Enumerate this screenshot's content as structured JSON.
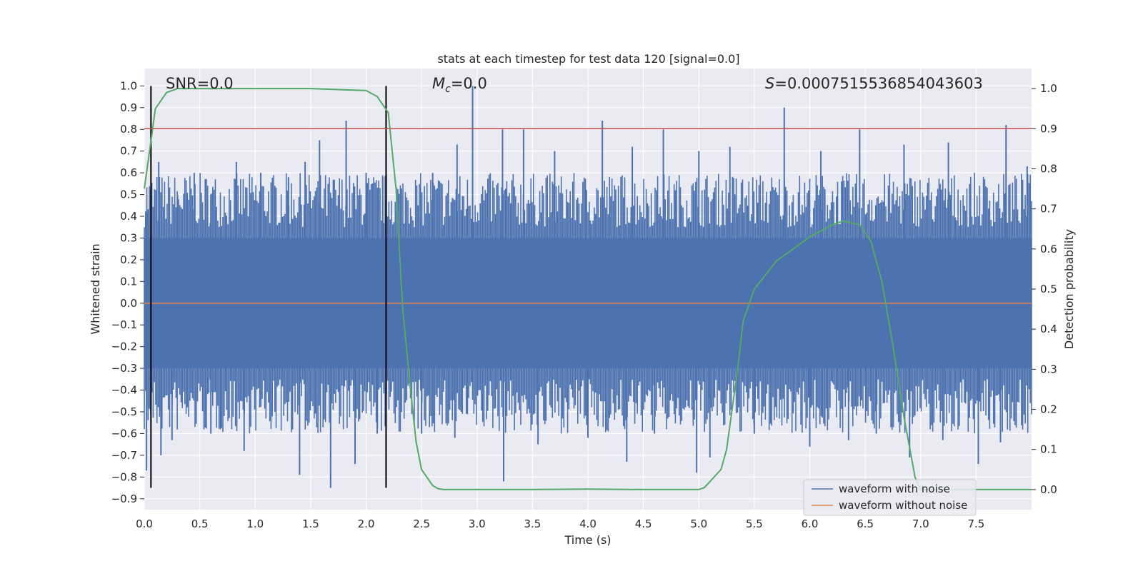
{
  "title": "stats at each timestep for test data 120 [signal=0.0]",
  "colors": {
    "background": "#eaeaf2",
    "grid": "#ffffff",
    "noisy_waveform": "#4c72b0",
    "clean_waveform": "#dd8452",
    "probability": "#55a868",
    "threshold": "#c44e52",
    "markers": "#000000"
  },
  "annotations": {
    "snr": "SNR=0.0",
    "mc_symbol": "M",
    "mc_sub": "c",
    "mc_value": "=0.0",
    "s_symbol": "S",
    "s_value": "=0.0007515536854043603"
  },
  "chart_data": {
    "type": "line",
    "xlabel": "Time (s)",
    "ylabel_left": "Whitened strain",
    "ylabel_right": "Detection probability",
    "xlim": [
      0.0,
      8.0
    ],
    "ylim_left": [
      -0.95,
      1.08
    ],
    "ylim_right": [
      -0.05,
      1.05
    ],
    "x_ticks": [
      "0.0",
      "0.5",
      "1.0",
      "1.5",
      "2.0",
      "2.5",
      "3.0",
      "3.5",
      "4.0",
      "4.5",
      "5.0",
      "5.5",
      "6.0",
      "6.5",
      "7.0",
      "7.5"
    ],
    "y_left_ticks": [
      "1.0",
      "0.9",
      "0.8",
      "0.7",
      "0.6",
      "0.5",
      "0.4",
      "0.3",
      "0.2",
      "0.1",
      "0.0",
      "−0.1",
      "−0.2",
      "−0.3",
      "−0.4",
      "−0.5",
      "−0.6",
      "−0.7",
      "−0.8",
      "−0.9"
    ],
    "y_right_ticks": [
      "1.0",
      "0.9",
      "0.8",
      "0.7",
      "0.6",
      "0.5",
      "0.4",
      "0.3",
      "0.2",
      "0.1",
      "0.0"
    ],
    "legend": {
      "position": "bottom-right",
      "entries": [
        "waveform with noise",
        "waveform without noise"
      ]
    },
    "vertical_markers_x": [
      0.06,
      2.18
    ],
    "vertical_markers_y_range": [
      -0.85,
      1.0
    ],
    "threshold_probability": 0.9,
    "series": [
      {
        "name": "waveform with noise",
        "axis": "left",
        "style": "noise",
        "band": [
          -0.3,
          0.3
        ],
        "spikes_up": [
          [
            0.03,
            0.43
          ],
          [
            0.13,
            0.65
          ],
          [
            0.3,
            0.5
          ],
          [
            0.45,
            0.6
          ],
          [
            0.6,
            0.5
          ],
          [
            0.83,
            0.65
          ],
          [
            1.05,
            0.6
          ],
          [
            1.3,
            0.58
          ],
          [
            1.45,
            0.65
          ],
          [
            1.58,
            0.75
          ],
          [
            1.82,
            0.84
          ],
          [
            2.0,
            0.6
          ],
          [
            2.15,
            0.58
          ],
          [
            2.6,
            0.6
          ],
          [
            2.82,
            0.73
          ],
          [
            2.96,
            1.0
          ],
          [
            3.23,
            0.8
          ],
          [
            3.42,
            0.8
          ],
          [
            3.7,
            0.7
          ],
          [
            4.13,
            0.84
          ],
          [
            4.4,
            0.72
          ],
          [
            4.68,
            0.8
          ],
          [
            5.0,
            0.7
          ],
          [
            5.28,
            0.72
          ],
          [
            5.77,
            0.9
          ],
          [
            6.1,
            0.7
          ],
          [
            6.45,
            0.8
          ],
          [
            6.85,
            0.73
          ],
          [
            7.25,
            0.74
          ],
          [
            7.77,
            0.82
          ],
          [
            7.96,
            0.63
          ]
        ],
        "spikes_down": [
          [
            0.02,
            -0.77
          ],
          [
            0.15,
            -0.7
          ],
          [
            0.25,
            -0.63
          ],
          [
            0.6,
            -0.6
          ],
          [
            0.9,
            -0.68
          ],
          [
            1.4,
            -0.79
          ],
          [
            1.68,
            -0.85
          ],
          [
            1.9,
            -0.74
          ],
          [
            2.1,
            -0.6
          ],
          [
            2.5,
            -0.6
          ],
          [
            2.8,
            -0.62
          ],
          [
            3.24,
            -0.82
          ],
          [
            3.55,
            -0.65
          ],
          [
            4.0,
            -0.62
          ],
          [
            4.35,
            -0.73
          ],
          [
            4.6,
            -0.6
          ],
          [
            4.98,
            -0.78
          ],
          [
            5.1,
            -0.71
          ],
          [
            5.5,
            -0.6
          ],
          [
            6.0,
            -0.66
          ],
          [
            6.35,
            -0.63
          ],
          [
            6.6,
            -0.6
          ],
          [
            6.9,
            -0.71
          ],
          [
            7.2,
            -0.63
          ],
          [
            7.52,
            -0.74
          ],
          [
            7.72,
            -0.64
          ]
        ]
      },
      {
        "name": "waveform without noise",
        "axis": "left",
        "x": [
          0.0,
          8.0
        ],
        "y": [
          0.0,
          0.0
        ]
      },
      {
        "axis": "right",
        "x": [
          0.0,
          0.05,
          0.1,
          0.2,
          0.3,
          0.5,
          1.0,
          1.5,
          2.0,
          2.1,
          2.2,
          2.27,
          2.33,
          2.4,
          2.45,
          2.5,
          2.6,
          2.65,
          2.7,
          2.75,
          3.0,
          3.5,
          4.0,
          4.5,
          5.0,
          5.05,
          5.1,
          5.2,
          5.25,
          5.3,
          5.35,
          5.4,
          5.5,
          5.7,
          5.9,
          6.0,
          6.2,
          6.3,
          6.45,
          6.55,
          6.65,
          6.75,
          6.85,
          6.95,
          7.0,
          7.2,
          7.5,
          8.0
        ],
        "y": [
          0.75,
          0.85,
          0.95,
          0.99,
          1.0,
          1.0,
          1.0,
          1.0,
          0.995,
          0.98,
          0.94,
          0.75,
          0.45,
          0.25,
          0.12,
          0.05,
          0.01,
          0.002,
          0.0,
          0.0,
          0.0,
          0.0,
          0.001,
          0.0,
          0.0,
          0.005,
          0.02,
          0.05,
          0.1,
          0.2,
          0.3,
          0.42,
          0.5,
          0.57,
          0.61,
          0.63,
          0.66,
          0.67,
          0.66,
          0.62,
          0.52,
          0.36,
          0.18,
          0.03,
          0.0,
          0.0,
          0.0,
          0.0
        ]
      }
    ]
  }
}
